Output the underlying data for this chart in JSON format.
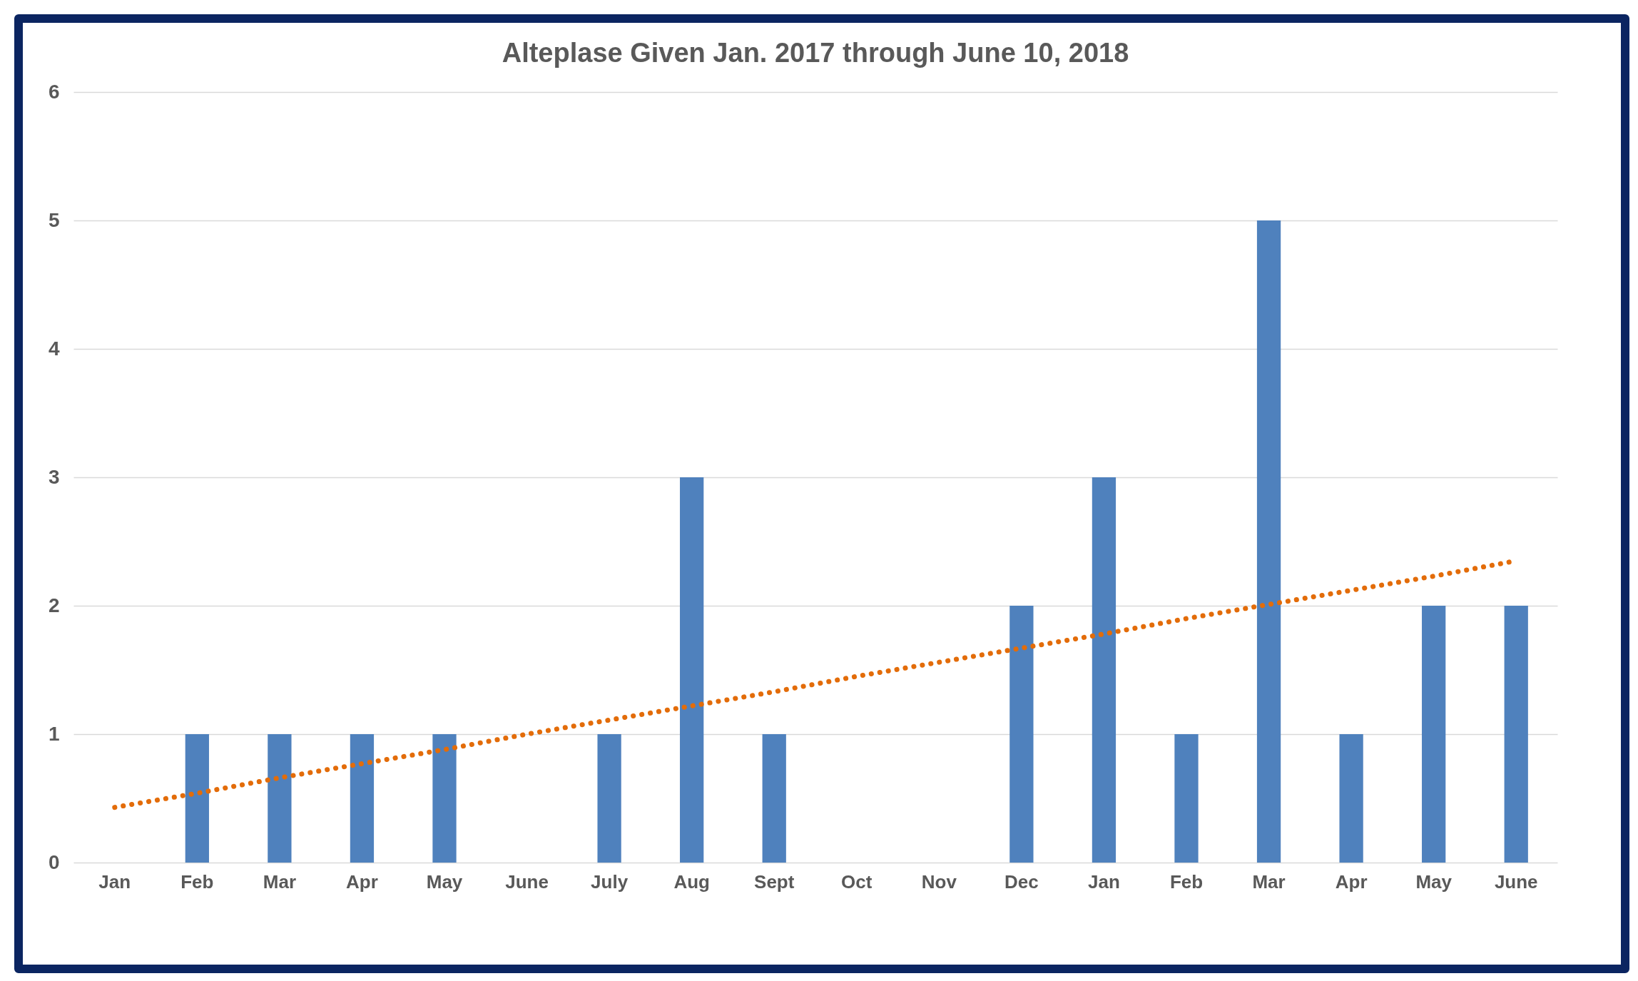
{
  "chart_data": {
    "type": "bar",
    "title": "Alteplase Given Jan. 2017 through June 10, 2018",
    "categories": [
      "Jan",
      "Feb",
      "Mar",
      "Apr",
      "May",
      "June",
      "July",
      "Aug",
      "Sept",
      "Oct",
      "Nov",
      "Dec",
      "Jan",
      "Feb",
      "Mar",
      "Apr",
      "May",
      "June"
    ],
    "series": [
      {
        "color": "#4f81bd",
        "values": [
          0,
          1,
          1,
          1,
          1,
          0,
          1,
          3,
          1,
          0,
          0,
          2,
          3,
          1,
          5,
          1,
          2,
          2
        ]
      },
      {
        "type": "line",
        "color": "#e36c09",
        "line_style": "dotted",
        "marker": "none",
        "values": [
          0.43,
          0.54,
          0.66,
          0.77,
          0.88,
          1.0,
          1.11,
          1.22,
          1.33,
          1.45,
          1.56,
          1.67,
          1.78,
          1.9,
          2.01,
          2.12,
          2.23,
          2.35
        ]
      }
    ],
    "ylim": [
      0,
      6
    ],
    "yticks": [
      0,
      1,
      2,
      3,
      4,
      5,
      6
    ],
    "grid": "y"
  }
}
